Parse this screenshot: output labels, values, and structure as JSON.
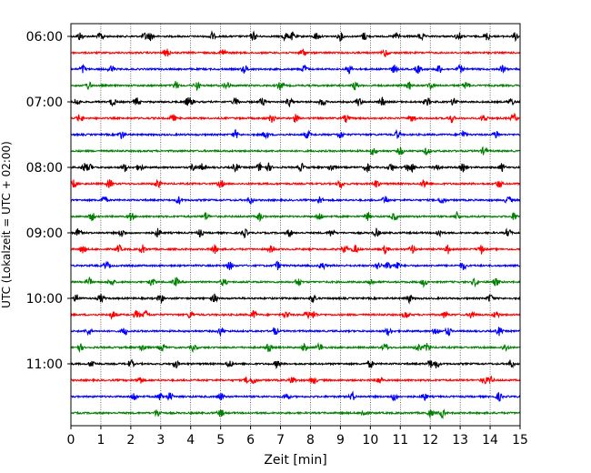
{
  "chart_data": {
    "type": "line",
    "xlabel": "Zeit  [min]",
    "ylabel": "UTC (Lokalzeit = UTC + 02:00)",
    "xlim": [
      0,
      15
    ],
    "x_ticks": [
      "0",
      "1",
      "2",
      "3",
      "4",
      "5",
      "6",
      "7",
      "8",
      "9",
      "10",
      "11",
      "12",
      "13",
      "14",
      "15"
    ],
    "y_ticks": [
      "06:00",
      "07:00",
      "08:00",
      "09:00",
      "10:00",
      "11:00"
    ],
    "grid": "vertical dotted at each minute",
    "trace_interval_minutes": 15,
    "trace_count": 24,
    "first_trace_time": "06:00",
    "colors": [
      "#000000",
      "#ff0000",
      "#0000ff",
      "#008000"
    ],
    "series": [
      {
        "time": "06:00",
        "color": "#000000",
        "events": [
          0.3,
          1.0,
          2.5,
          2.65,
          4.7,
          6.1,
          7.15,
          7.4,
          8.2,
          9.0,
          9.8,
          10.9,
          11.7,
          12.95,
          13.9,
          14.85
        ]
      },
      {
        "time": "06:15",
        "color": "#ff0000",
        "events": [
          3.2,
          5.1,
          7.75,
          10.5
        ]
      },
      {
        "time": "06:30",
        "color": "#0000ff",
        "events": [
          0.4,
          1.35,
          5.8,
          7.8,
          9.3,
          10.8,
          11.6,
          12.3,
          13.0,
          14.4
        ]
      },
      {
        "time": "06:45",
        "color": "#008000",
        "events": [
          0.6,
          3.5,
          4.2,
          5.2,
          7.0,
          9.5,
          11.3,
          12.0,
          13.2
        ]
      },
      {
        "time": "07:00",
        "color": "#000000",
        "events": [
          0.2,
          1.4,
          2.2,
          3.9,
          4.0,
          5.5,
          6.4,
          7.3,
          8.4,
          9.6,
          10.4,
          11.9,
          12.8,
          14.7
        ]
      },
      {
        "time": "07:15",
        "color": "#ff0000",
        "events": [
          0.3,
          3.4,
          6.7,
          7.5,
          9.2,
          11.4,
          12.7,
          13.8,
          14.8
        ]
      },
      {
        "time": "07:30",
        "color": "#0000ff",
        "events": [
          1.7,
          5.5,
          6.5,
          7.9,
          9.0,
          10.9,
          13.1,
          14.2
        ]
      },
      {
        "time": "07:45",
        "color": "#008000",
        "events": [
          10.1,
          11.0,
          11.9,
          13.8
        ]
      },
      {
        "time": "08:00",
        "color": "#000000",
        "events": [
          0.45,
          0.6,
          1.8,
          2.3,
          4.1,
          4.4,
          5.5,
          6.3,
          6.6,
          7.7,
          8.7,
          9.9,
          10.7,
          11.25,
          11.4,
          12.2,
          13.1,
          14.4
        ]
      },
      {
        "time": "08:15",
        "color": "#ff0000",
        "events": [
          0.1,
          1.3,
          2.9,
          5.0,
          9.0,
          10.2,
          11.8,
          14.3
        ]
      },
      {
        "time": "08:30",
        "color": "#0000ff",
        "events": [
          1.1,
          3.6,
          6.0,
          8.3,
          10.5,
          12.4,
          14.6
        ]
      },
      {
        "time": "08:45",
        "color": "#008000",
        "events": [
          0.7,
          2.0,
          4.5,
          6.3,
          8.3,
          9.9,
          10.8,
          12.9,
          14.8
        ]
      },
      {
        "time": "09:00",
        "color": "#000000",
        "events": [
          0.25,
          1.7,
          2.9,
          4.3,
          5.8,
          7.3,
          8.7,
          10.2,
          12.3,
          14.6
        ]
      },
      {
        "time": "09:15",
        "color": "#ff0000",
        "events": [
          0.4,
          1.6,
          2.4,
          4.8,
          6.7,
          9.15,
          9.5,
          10.5,
          11.4,
          12.6,
          13.7
        ]
      },
      {
        "time": "09:30",
        "color": "#0000ff",
        "events": [
          1.2,
          5.3,
          6.9,
          8.4,
          10.25,
          10.6,
          10.9,
          13.1
        ]
      },
      {
        "time": "09:45",
        "color": "#008000",
        "events": [
          0.6,
          1.35,
          2.7,
          3.5,
          5.1,
          7.6,
          10.0,
          11.8,
          13.5,
          14.2
        ]
      },
      {
        "time": "10:00",
        "color": "#000000",
        "events": [
          0.2,
          1.0,
          3.0,
          4.8,
          8.1,
          11.3,
          14.0
        ]
      },
      {
        "time": "10:15",
        "color": "#ff0000",
        "events": [
          1.4,
          2.2,
          2.5,
          4.0,
          6.1,
          7.2,
          7.9,
          8.1,
          11.2,
          12.5,
          13.4,
          14.2
        ]
      },
      {
        "time": "10:30",
        "color": "#0000ff",
        "events": [
          0.6,
          1.8,
          5.0,
          6.8,
          10.6,
          12.2,
          12.6,
          14.3
        ]
      },
      {
        "time": "10:45",
        "color": "#008000",
        "events": [
          0.3,
          2.4,
          3.05,
          4.1,
          6.6,
          7.8,
          8.3,
          10.5,
          11.6,
          11.9,
          14.5
        ]
      },
      {
        "time": "11:00",
        "color": "#000000",
        "events": [
          0.7,
          2.0,
          3.5,
          5.3,
          6.9,
          10.0,
          12.0,
          12.2,
          14.7
        ]
      },
      {
        "time": "11:15",
        "color": "#ff0000",
        "events": [
          2.3,
          5.9,
          6.1,
          7.4,
          8.1,
          10.3,
          13.8,
          14.0
        ]
      },
      {
        "time": "11:30",
        "color": "#0000ff",
        "events": [
          2.1,
          3.0,
          3.3,
          5.0,
          7.2,
          9.4,
          10.8,
          11.8,
          14.3
        ]
      },
      {
        "time": "11:45",
        "color": "#008000",
        "events": [
          2.9,
          5.0,
          9.8,
          12.0,
          12.4
        ]
      }
    ]
  }
}
